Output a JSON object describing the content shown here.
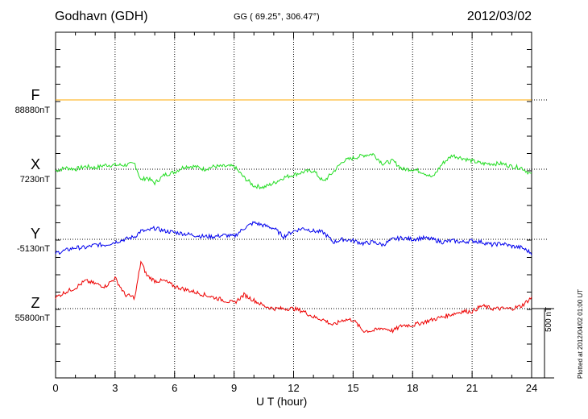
{
  "header": {
    "station": "Godhavn (GDH)",
    "coords": "GG ( 69.25°, 306.47°)",
    "date": "2012/03/02"
  },
  "footer": {
    "xlabel": "U T (hour)",
    "scale_label": "500 nT",
    "plotted": "Plotted at 2012/04/02 01:00 UT"
  },
  "colors": {
    "F": "#ffaa00",
    "X": "#22dd22",
    "Y": "#0000ee",
    "Z": "#ee0000",
    "axis": "#000000",
    "grid": "#000000"
  },
  "chart_data": {
    "type": "line",
    "xlim": [
      0,
      24
    ],
    "x_ticks": [
      0,
      3,
      6,
      9,
      12,
      15,
      18,
      21,
      24
    ],
    "grid": true,
    "scale_bar_nT": 500,
    "series": [
      {
        "name": "F",
        "baseline_label": "88880nT",
        "x": [
          0,
          24
        ],
        "values": [
          0,
          0
        ]
      },
      {
        "name": "X",
        "baseline_label": "7230nT",
        "x": [
          0,
          0.5,
          1,
          1.5,
          2,
          2.5,
          3,
          3.5,
          4,
          4.3,
          4.6,
          5,
          5.5,
          6,
          6.5,
          7,
          7.5,
          8,
          8.5,
          9,
          9.5,
          10,
          10.5,
          11,
          11.5,
          12,
          12.5,
          13,
          13.5,
          14,
          14.5,
          15,
          15.5,
          16,
          16.5,
          17,
          17.5,
          18,
          18.5,
          19,
          19.5,
          20,
          20.5,
          21,
          21.5,
          22,
          22.5,
          23,
          23.5,
          24
        ],
        "values": [
          -10,
          10,
          0,
          20,
          10,
          30,
          30,
          30,
          40,
          -80,
          -60,
          -100,
          -40,
          -20,
          20,
          20,
          0,
          20,
          20,
          20,
          -60,
          -120,
          -130,
          -100,
          -60,
          -40,
          -20,
          -10,
          -90,
          -20,
          60,
          80,
          100,
          110,
          40,
          60,
          0,
          0,
          -20,
          -60,
          40,
          100,
          80,
          60,
          40,
          40,
          40,
          20,
          10,
          -40
        ]
      },
      {
        "name": "Y",
        "baseline_label": "-5130nT",
        "x": [
          0,
          0.5,
          1,
          1.5,
          2,
          2.5,
          3,
          3.5,
          4,
          4.3,
          4.6,
          5,
          5.5,
          6,
          6.5,
          7,
          7.5,
          8,
          8.5,
          9,
          9.5,
          10,
          10.5,
          11,
          11.5,
          12,
          12.5,
          13,
          13.5,
          14,
          14.5,
          15,
          15.5,
          16,
          16.5,
          17,
          17.5,
          18,
          18.5,
          19,
          19.5,
          20,
          20.5,
          21,
          21.5,
          22,
          22.5,
          23,
          23.5,
          24
        ],
        "values": [
          -100,
          -80,
          -60,
          -60,
          -40,
          -40,
          -20,
          0,
          20,
          60,
          60,
          80,
          60,
          50,
          40,
          30,
          20,
          20,
          30,
          20,
          80,
          120,
          100,
          80,
          20,
          60,
          80,
          60,
          50,
          -20,
          0,
          -10,
          -30,
          -20,
          -40,
          0,
          10,
          0,
          10,
          0,
          -20,
          -10,
          -20,
          -10,
          -20,
          -40,
          -30,
          -50,
          -60,
          -100
        ]
      },
      {
        "name": "Z",
        "baseline_label": "55800nT",
        "x": [
          0,
          0.5,
          1,
          1.5,
          2,
          2.5,
          3,
          3.5,
          4,
          4.3,
          4.6,
          5,
          5.5,
          6,
          6.5,
          7,
          7.5,
          8,
          8.5,
          9,
          9.5,
          10,
          10.5,
          11,
          11.5,
          12,
          12.5,
          13,
          13.5,
          14,
          14.5,
          15,
          15.5,
          16,
          16.5,
          17,
          17.5,
          18,
          18.5,
          19,
          19.5,
          20,
          20.5,
          21,
          21.5,
          22,
          22.5,
          23,
          23.5,
          24
        ],
        "values": [
          80,
          120,
          150,
          200,
          180,
          160,
          220,
          100,
          80,
          340,
          240,
          200,
          200,
          160,
          140,
          120,
          100,
          80,
          60,
          40,
          100,
          60,
          20,
          0,
          0,
          0,
          -20,
          -60,
          -80,
          -120,
          -80,
          -80,
          -160,
          -160,
          -140,
          -160,
          -120,
          -120,
          -100,
          -80,
          -60,
          -40,
          -20,
          -20,
          20,
          0,
          0,
          0,
          20,
          80
        ]
      }
    ]
  }
}
